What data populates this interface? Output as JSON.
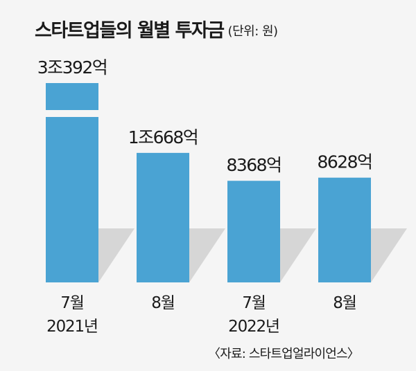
{
  "header": {
    "title": "스타트업들의 월별 투자금",
    "unit": "(단위: 원)"
  },
  "source": "〈자료: 스타트업얼라이언스〉",
  "chart_data": {
    "type": "bar",
    "title": "스타트업들의 월별 투자금",
    "unit_label": "(단위: 원)",
    "categories": [
      "7월",
      "8월",
      "7월",
      "8월"
    ],
    "year_labels": [
      "2021년",
      "",
      "2022년",
      ""
    ],
    "values": [
      30392,
      10668,
      8368,
      8628
    ],
    "value_labels": [
      "3조392억",
      "1조668억",
      "8368억",
      "8628억"
    ],
    "value_unit": "억원",
    "axis_break_on_first_bar": true,
    "grid": false,
    "legend": "none",
    "colors": {
      "bar": "#4aa3d3",
      "shadow": "#d6d6d6",
      "background": "#f5f5f5"
    }
  }
}
